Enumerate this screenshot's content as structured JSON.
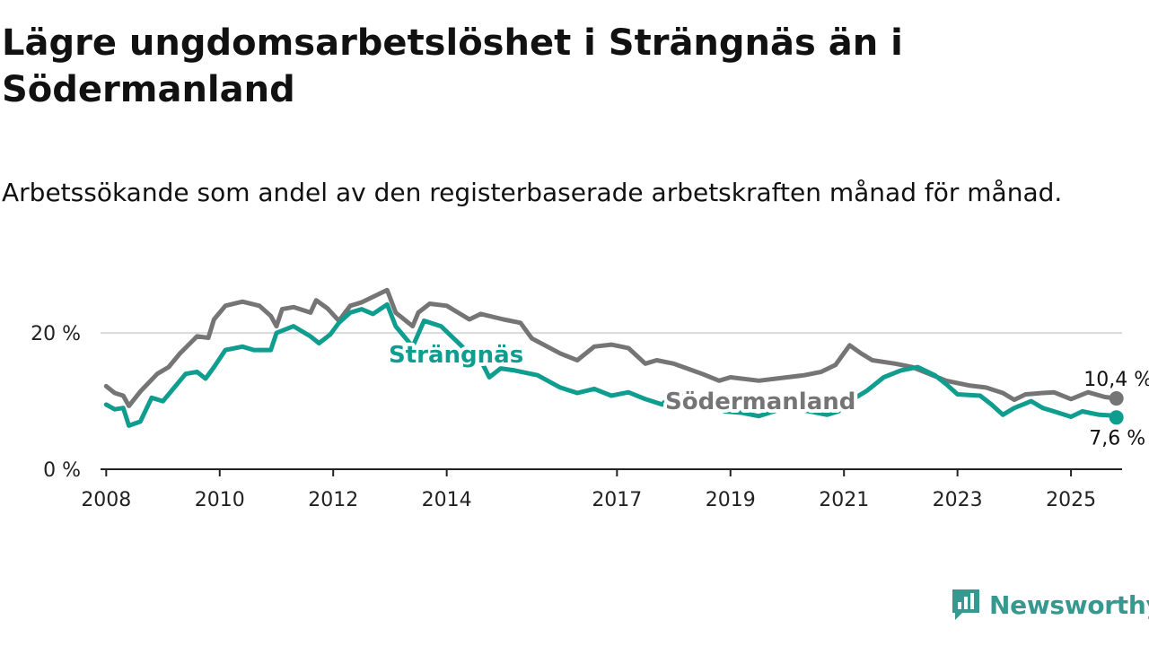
{
  "title": "Lägre ungdomsarbetslöshet i Strängnäs än i Södermanland",
  "subtitle": "Arbetssökande som andel av den registerbaserade arbetskraften månad för månad.",
  "brand": "Newsworthy",
  "colors": {
    "strangnas": "#0f9d8f",
    "sodermanland": "#757575",
    "brand": "#37988f"
  },
  "chart_data": {
    "type": "line",
    "title": "Lägre ungdomsarbetslöshet i Strängnäs än i Södermanland",
    "subtitle": "Arbetssökande som andel av den registerbaserade arbetskraften månad för månad.",
    "xlabel": "",
    "ylabel": "",
    "x_ticks": [
      "2008",
      "2010",
      "2012",
      "2014",
      "2017",
      "2019",
      "2021",
      "2023",
      "2025"
    ],
    "y_ticks": [
      "0 %",
      "20 %"
    ],
    "y_tick_values": [
      0,
      20
    ],
    "xlim": [
      2007.9,
      2025.9
    ],
    "ylim": [
      0,
      27
    ],
    "grid": "horizontal",
    "legend": "direct labels on lines",
    "annotations": [
      "10,4 %",
      "7,6 %"
    ],
    "series": [
      {
        "name": "Södermanland",
        "points": [
          [
            2008.0,
            12.2
          ],
          [
            2008.15,
            11.2
          ],
          [
            2008.3,
            10.8
          ],
          [
            2008.4,
            9.3
          ],
          [
            2008.6,
            11.4
          ],
          [
            2008.9,
            14.0
          ],
          [
            2009.1,
            15.0
          ],
          [
            2009.3,
            17.0
          ],
          [
            2009.6,
            19.5
          ],
          [
            2009.8,
            19.3
          ],
          [
            2009.9,
            22.0
          ],
          [
            2010.1,
            24.0
          ],
          [
            2010.4,
            24.6
          ],
          [
            2010.7,
            24.0
          ],
          [
            2010.9,
            22.5
          ],
          [
            2011.0,
            21.0
          ],
          [
            2011.1,
            23.5
          ],
          [
            2011.3,
            23.8
          ],
          [
            2011.6,
            23.0
          ],
          [
            2011.7,
            24.8
          ],
          [
            2011.9,
            23.6
          ],
          [
            2012.1,
            21.8
          ],
          [
            2012.3,
            24.0
          ],
          [
            2012.5,
            24.5
          ],
          [
            2012.7,
            25.3
          ],
          [
            2012.95,
            26.3
          ],
          [
            2013.1,
            23.0
          ],
          [
            2013.4,
            21.0
          ],
          [
            2013.5,
            23.0
          ],
          [
            2013.7,
            24.3
          ],
          [
            2014.0,
            24.0
          ],
          [
            2014.4,
            22.0
          ],
          [
            2014.6,
            22.8
          ],
          [
            2015.0,
            22.0
          ],
          [
            2015.3,
            21.5
          ],
          [
            2015.5,
            19.2
          ],
          [
            2016.0,
            17.0
          ],
          [
            2016.3,
            16.0
          ],
          [
            2016.6,
            18.0
          ],
          [
            2016.9,
            18.3
          ],
          [
            2017.2,
            17.8
          ],
          [
            2017.5,
            15.5
          ],
          [
            2017.7,
            16.0
          ],
          [
            2018.0,
            15.5
          ],
          [
            2018.5,
            14.0
          ],
          [
            2018.8,
            13.0
          ],
          [
            2019.0,
            13.5
          ],
          [
            2019.5,
            13.0
          ],
          [
            2020.0,
            13.5
          ],
          [
            2020.3,
            13.8
          ],
          [
            2020.6,
            14.3
          ],
          [
            2020.85,
            15.3
          ],
          [
            2021.1,
            18.2
          ],
          [
            2021.3,
            17.0
          ],
          [
            2021.5,
            16.0
          ],
          [
            2021.9,
            15.5
          ],
          [
            2022.2,
            15.0
          ],
          [
            2022.5,
            14.0
          ],
          [
            2022.8,
            13.0
          ],
          [
            2023.2,
            12.3
          ],
          [
            2023.5,
            12.0
          ],
          [
            2023.8,
            11.2
          ],
          [
            2024.0,
            10.2
          ],
          [
            2024.2,
            11.0
          ],
          [
            2024.5,
            11.2
          ],
          [
            2024.7,
            11.3
          ],
          [
            2025.0,
            10.3
          ],
          [
            2025.3,
            11.3
          ],
          [
            2025.6,
            10.6
          ],
          [
            2025.8,
            10.4
          ]
        ]
      },
      {
        "name": "Strängnäs",
        "points": [
          [
            2008.0,
            9.5
          ],
          [
            2008.15,
            8.8
          ],
          [
            2008.3,
            9.0
          ],
          [
            2008.4,
            6.4
          ],
          [
            2008.6,
            7.0
          ],
          [
            2008.8,
            10.5
          ],
          [
            2009.0,
            10.0
          ],
          [
            2009.2,
            12.0
          ],
          [
            2009.4,
            14.0
          ],
          [
            2009.6,
            14.3
          ],
          [
            2009.75,
            13.3
          ],
          [
            2009.9,
            15.0
          ],
          [
            2010.1,
            17.5
          ],
          [
            2010.4,
            18.0
          ],
          [
            2010.6,
            17.5
          ],
          [
            2010.9,
            17.5
          ],
          [
            2011.0,
            20.0
          ],
          [
            2011.3,
            21.0
          ],
          [
            2011.6,
            19.5
          ],
          [
            2011.75,
            18.5
          ],
          [
            2011.95,
            19.8
          ],
          [
            2012.1,
            21.5
          ],
          [
            2012.3,
            23.0
          ],
          [
            2012.5,
            23.5
          ],
          [
            2012.7,
            22.8
          ],
          [
            2012.95,
            24.2
          ],
          [
            2013.1,
            21.0
          ],
          [
            2013.4,
            18.0
          ],
          [
            2013.6,
            21.8
          ],
          [
            2013.9,
            21.0
          ],
          [
            2014.4,
            17.0
          ],
          [
            2014.6,
            16.0
          ],
          [
            2014.75,
            13.5
          ],
          [
            2014.95,
            14.8
          ],
          [
            2015.2,
            14.5
          ],
          [
            2015.6,
            13.8
          ],
          [
            2016.0,
            12.0
          ],
          [
            2016.3,
            11.2
          ],
          [
            2016.6,
            11.8
          ],
          [
            2016.9,
            10.8
          ],
          [
            2017.2,
            11.3
          ],
          [
            2017.5,
            10.3
          ],
          [
            2017.8,
            9.5
          ],
          [
            2018.0,
            11.5
          ],
          [
            2018.3,
            10.3
          ],
          [
            2018.6,
            9.5
          ],
          [
            2018.9,
            8.5
          ],
          [
            2019.2,
            8.3
          ],
          [
            2019.5,
            7.8
          ],
          [
            2019.8,
            8.6
          ],
          [
            2020.1,
            8.9
          ],
          [
            2020.4,
            8.5
          ],
          [
            2020.7,
            8.0
          ],
          [
            2020.9,
            8.5
          ],
          [
            2021.1,
            10.0
          ],
          [
            2021.4,
            11.5
          ],
          [
            2021.7,
            13.5
          ],
          [
            2022.0,
            14.5
          ],
          [
            2022.3,
            15.0
          ],
          [
            2022.6,
            13.8
          ],
          [
            2022.8,
            12.5
          ],
          [
            2023.0,
            11.0
          ],
          [
            2023.4,
            10.8
          ],
          [
            2023.6,
            9.5
          ],
          [
            2023.8,
            8.0
          ],
          [
            2024.0,
            9.0
          ],
          [
            2024.3,
            10.0
          ],
          [
            2024.5,
            9.0
          ],
          [
            2024.7,
            8.5
          ],
          [
            2025.0,
            7.7
          ],
          [
            2025.2,
            8.5
          ],
          [
            2025.5,
            8.0
          ],
          [
            2025.7,
            7.9
          ],
          [
            2025.8,
            7.6
          ]
        ]
      }
    ]
  }
}
